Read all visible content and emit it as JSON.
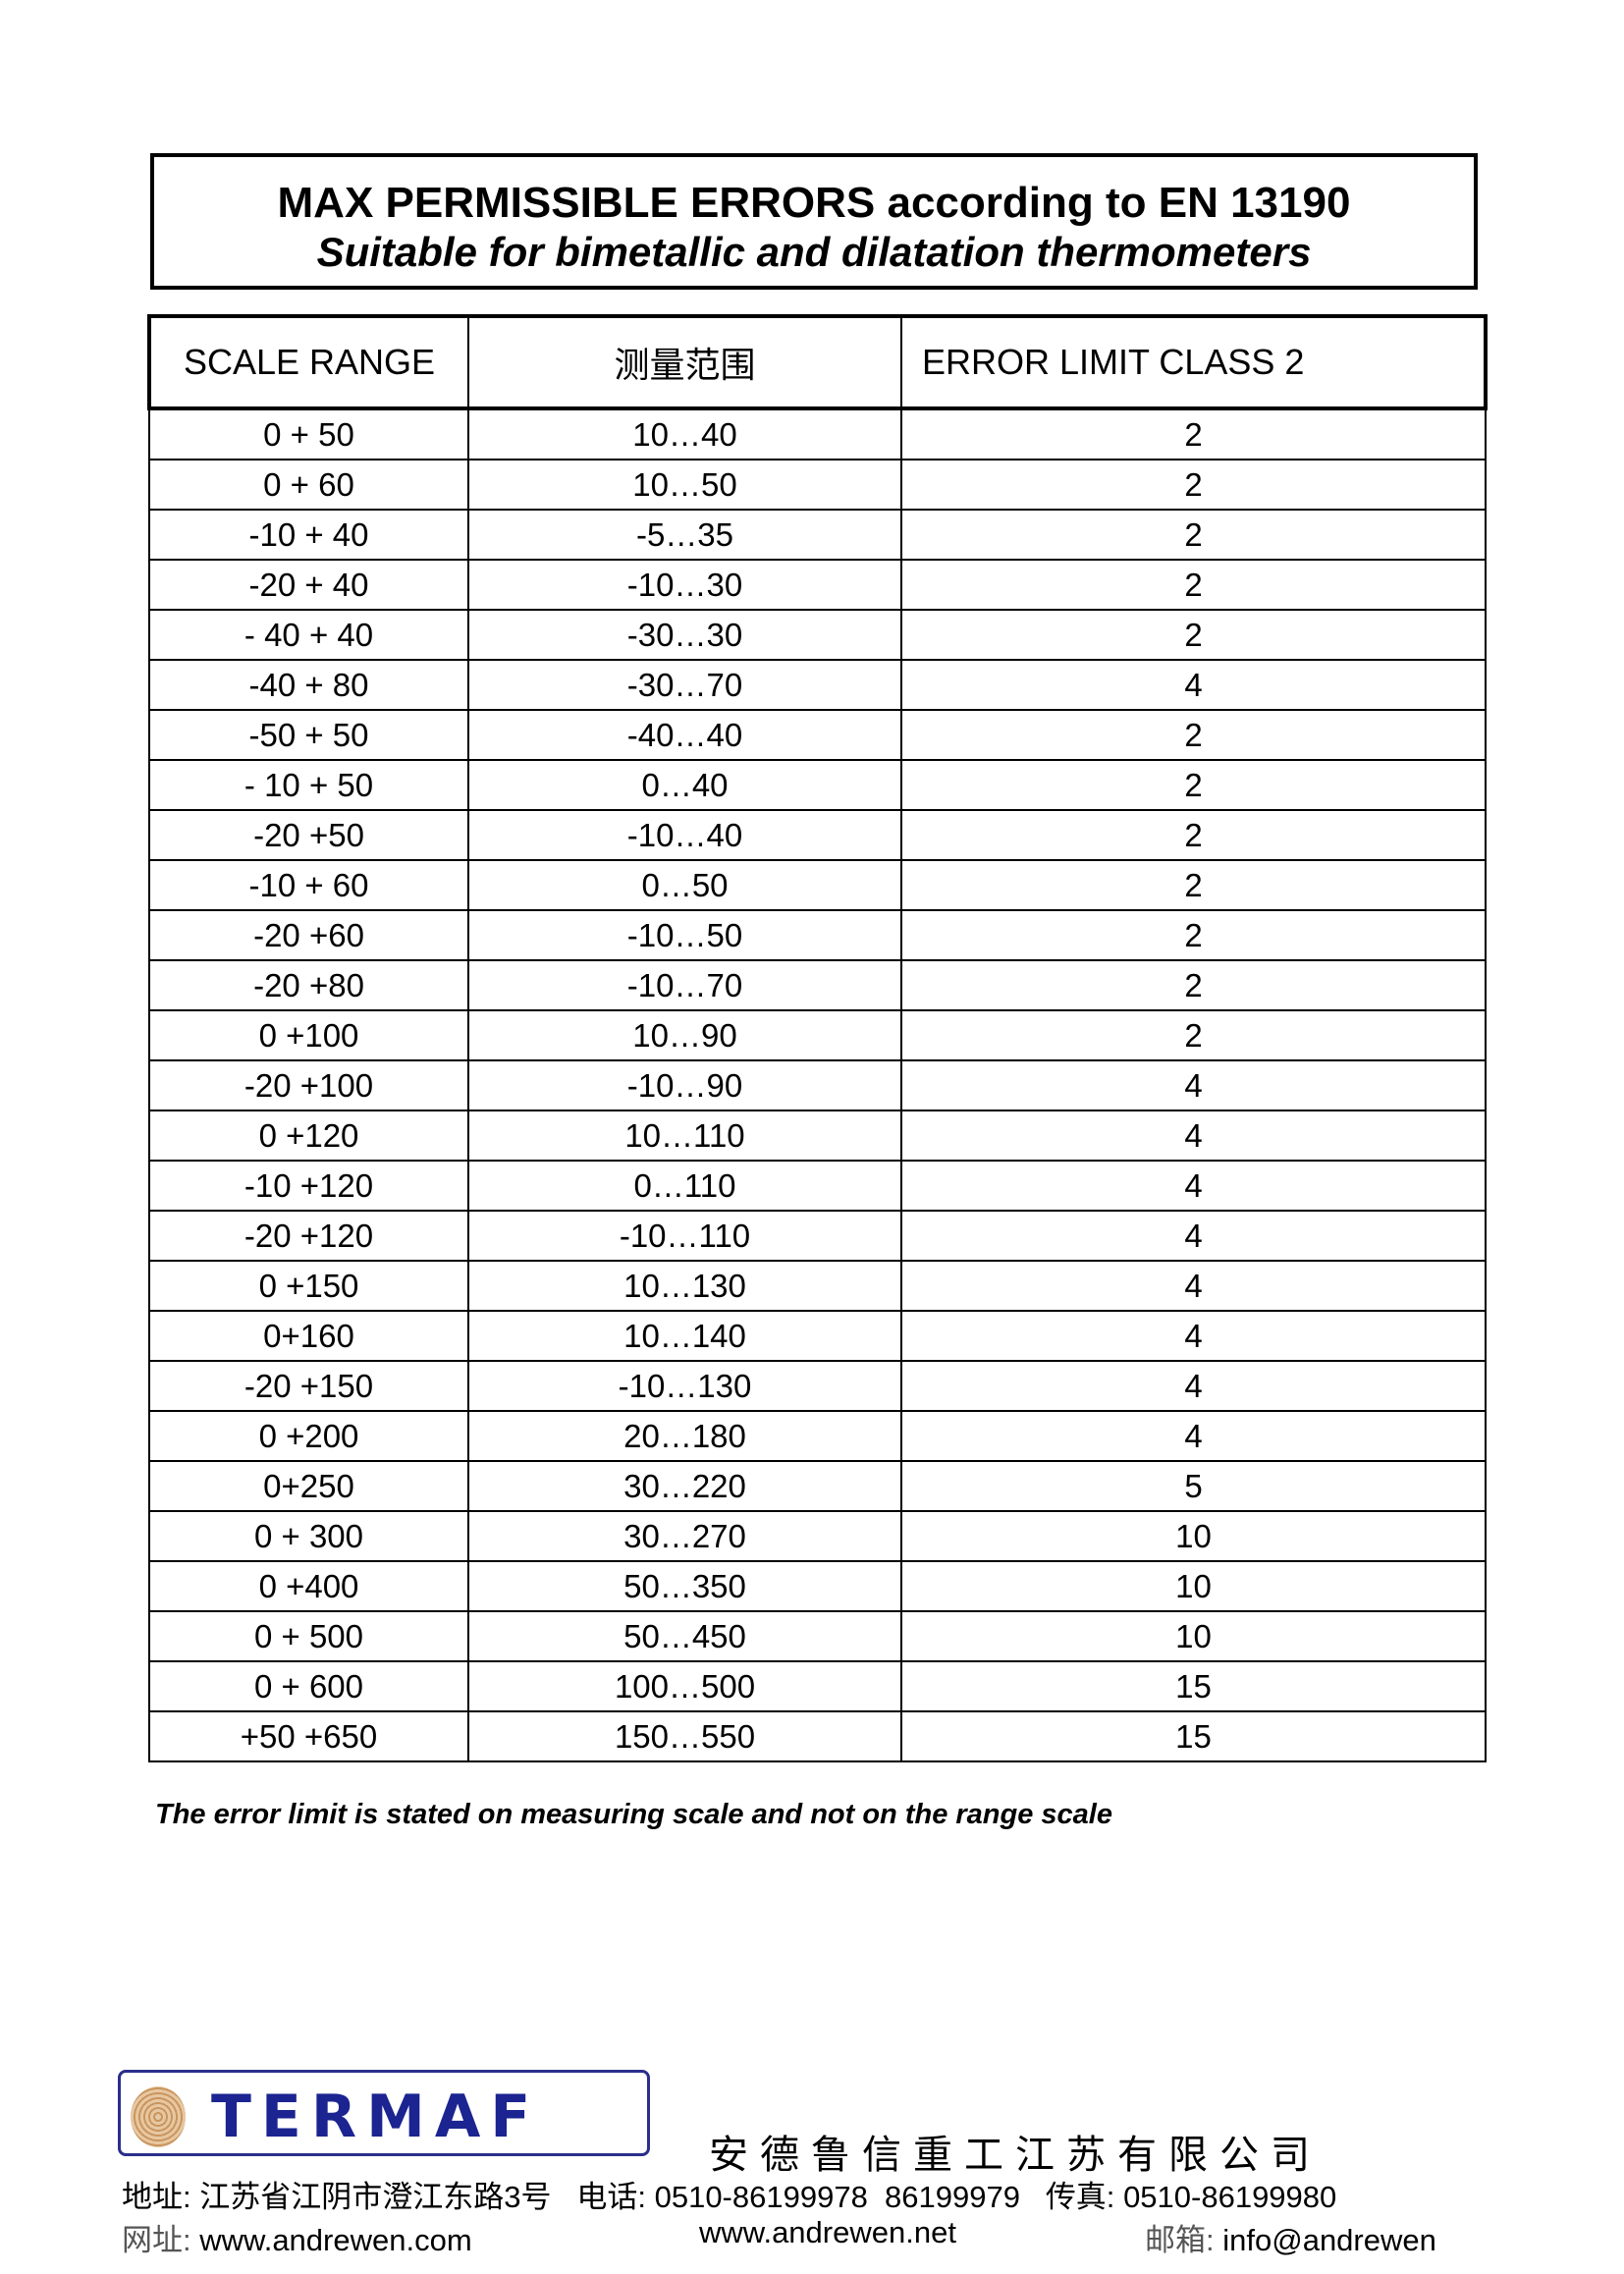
{
  "header": {
    "title": "MAX PERMISSIBLE ERRORS according to EN 13190",
    "subtitle": "Suitable for bimetallic and dilatation thermometers"
  },
  "table": {
    "columns": [
      "SCALE RANGE",
      "测量范围",
      "ERROR LIMIT CLASS 2"
    ],
    "rows": [
      [
        "0 + 50",
        "10…40",
        "2"
      ],
      [
        "0 + 60",
        "10…50",
        "2"
      ],
      [
        "-10 + 40",
        "-5…35",
        "2"
      ],
      [
        "-20 + 40",
        "-10…30",
        "2"
      ],
      [
        "- 40 + 40",
        "-30…30",
        "2"
      ],
      [
        "-40 + 80",
        "-30…70",
        "4"
      ],
      [
        "-50 + 50",
        "-40…40",
        "2"
      ],
      [
        "- 10 + 50",
        "0…40",
        "2"
      ],
      [
        "-20 +50",
        "-10…40",
        "2"
      ],
      [
        "-10 + 60",
        "0…50",
        "2"
      ],
      [
        "-20 +60",
        "-10…50",
        "2"
      ],
      [
        "-20 +80",
        "-10…70",
        "2"
      ],
      [
        "0 +100",
        "10…90",
        "2"
      ],
      [
        "-20 +100",
        "-10…90",
        "4"
      ],
      [
        "0 +120",
        "10…110",
        "4"
      ],
      [
        "-10 +120",
        "0…110",
        "4"
      ],
      [
        "-20 +120",
        "-10…110",
        "4"
      ],
      [
        "0 +150",
        "10…130",
        "4"
      ],
      [
        "0+160",
        "10…140",
        "4"
      ],
      [
        "-20 +150",
        "-10…130",
        "4"
      ],
      [
        "0 +200",
        "20…180",
        "4"
      ],
      [
        "0+250",
        "30…220",
        "5"
      ],
      [
        "0 + 300",
        "30…270",
        "10"
      ],
      [
        "0 +400",
        "50…350",
        "10"
      ],
      [
        "0 + 500",
        "50…450",
        "10"
      ],
      [
        "0 + 600",
        "100…500",
        "15"
      ],
      [
        "+50 +650",
        "150…550",
        "15"
      ]
    ]
  },
  "note": "The error limit is stated on measuring scale and not on the range scale",
  "footer": {
    "logo_text": "TERMAF",
    "company": "安德鲁信重工江苏有限公司",
    "address_label": "地址:",
    "address": "江苏省江阴市澄江东路3号",
    "phone_label": "电话:",
    "phone": "0510-86199978  86199979",
    "fax_label": "传真:",
    "fax": "0510-86199980",
    "web_label": "网址:",
    "web1": "www.andrewen.com",
    "web2": "www.andrewen.net",
    "email_label": "邮箱:",
    "email": "info@andrewen"
  },
  "colors": {
    "logo_blue": "#1b2490",
    "logo_dot": "#f08a1c"
  }
}
